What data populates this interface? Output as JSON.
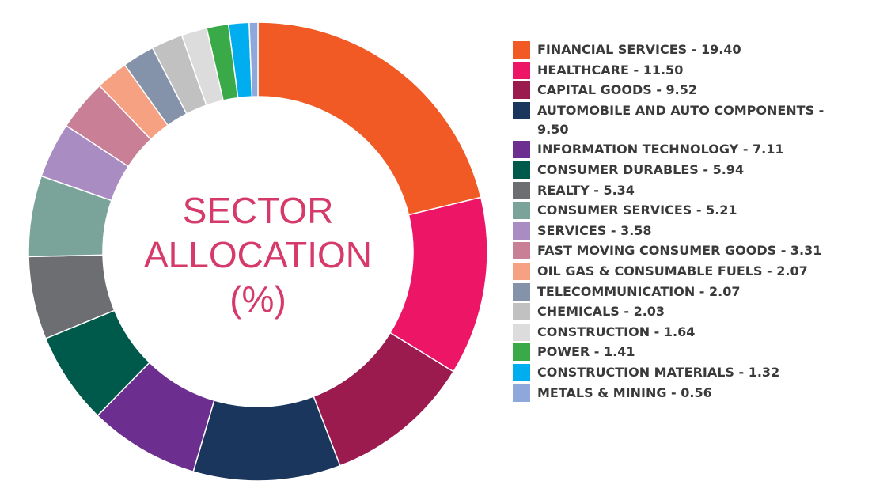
{
  "chart_data": {
    "type": "donut",
    "title": "SECTOR ALLOCATION (%)",
    "labels": [
      "FINANCIAL SERVICES - 19.40",
      "HEALTHCARE - 11.50",
      "CAPITAL GOODS - 9.52",
      "AUTOMOBILE AND AUTO COMPONENTS - 9.50",
      "INFORMATION TECHNOLOGY - 7.11",
      "CONSUMER DURABLES - 5.94",
      "REALTY - 5.34",
      "CONSUMER SERVICES - 5.21",
      "SERVICES - 3.58",
      "FAST MOVING CONSUMER GOODS - 3.31",
      "OIL GAS & CONSUMABLE FUELS - 2.07",
      "TELECOMMUNICATION - 2.07",
      "CHEMICALS - 2.03",
      "CONSTRUCTION - 1.64",
      "POWER - 1.41",
      "CONSTRUCTION MATERIALS - 1.32",
      "METALS & MINING - 0.56"
    ],
    "values": [
      19.4,
      11.5,
      9.52,
      9.5,
      7.11,
      5.94,
      5.34,
      5.21,
      3.58,
      3.31,
      2.07,
      2.07,
      2.03,
      1.64,
      1.41,
      1.32,
      0.56
    ],
    "colors": [
      "#f15a24",
      "#ec1566",
      "#9b1b4f",
      "#1b365d",
      "#6d2f8f",
      "#005a4b",
      "#6d6e71",
      "#7aa39a",
      "#a98cc2",
      "#c98096",
      "#f7a183",
      "#8593aa",
      "#c1c1c1",
      "#dcdcdc",
      "#3aaa49",
      "#00aeef",
      "#8fa8dc"
    ],
    "title_color": "#d63a6a"
  }
}
